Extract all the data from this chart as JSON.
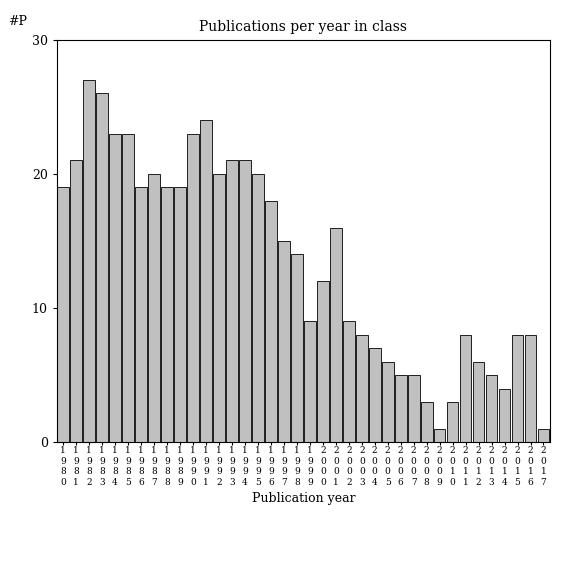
{
  "title": "Publications per year in class",
  "xlabel": "Publication year",
  "ylabel": "#P",
  "bar_color": "#c0c0c0",
  "bar_edgecolor": "#000000",
  "background_color": "#ffffff",
  "ylim": [
    0,
    30
  ],
  "yticks": [
    0,
    10,
    20,
    30
  ],
  "categories": [
    "1980",
    "1981",
    "1982",
    "1983",
    "1984",
    "1985",
    "1986",
    "1987",
    "1988",
    "1989",
    "1990",
    "1991",
    "1992",
    "1993",
    "1994",
    "1995",
    "1996",
    "1997",
    "1998",
    "1999",
    "2000",
    "2001",
    "2002",
    "2003",
    "2004",
    "2005",
    "2006",
    "2007",
    "2008",
    "2009",
    "2010",
    "2011",
    "2012",
    "2013",
    "2014",
    "2015",
    "2016",
    "2017"
  ],
  "values": [
    19,
    21,
    27,
    26,
    23,
    23,
    19,
    20,
    19,
    19,
    23,
    24,
    20,
    21,
    21,
    20,
    18,
    15,
    14,
    9,
    12,
    16,
    9,
    8,
    7,
    6,
    5,
    5,
    3,
    1,
    3,
    8,
    6,
    5,
    4,
    8,
    8,
    1
  ]
}
